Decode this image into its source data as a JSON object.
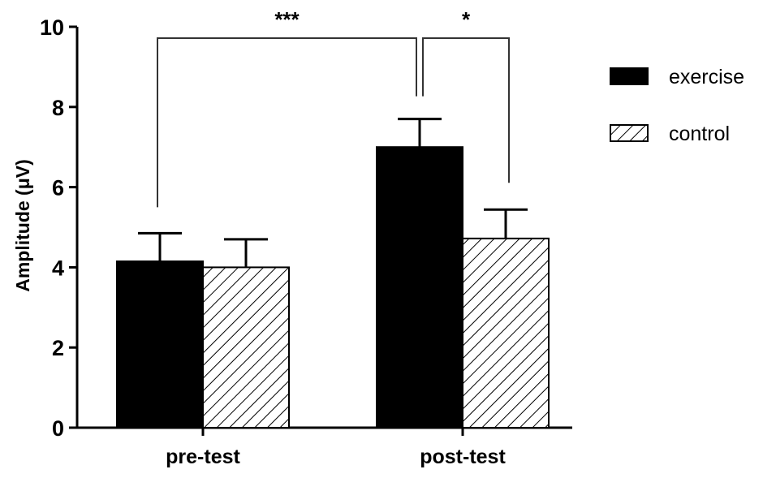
{
  "chart_data": {
    "type": "bar",
    "title": "",
    "xlabel": "",
    "ylabel": "Amplitude (μV)",
    "ylim": [
      0,
      10
    ],
    "yticks": [
      0,
      2,
      4,
      6,
      8,
      10
    ],
    "categories": [
      "pre-test",
      "post-test"
    ],
    "series": [
      {
        "name": "exercise",
        "values": [
          4.15,
          7.0
        ],
        "errors": [
          0.7,
          0.7
        ],
        "fill": "#000000",
        "pattern": "solid"
      },
      {
        "name": "control",
        "values": [
          4.0,
          4.72
        ],
        "errors": [
          0.7,
          0.72
        ],
        "fill": "#ffffff",
        "pattern": "hatch"
      }
    ],
    "legend": {
      "position": "right"
    },
    "grid": false,
    "annotations": [
      {
        "label": "***",
        "from": "pre-test/exercise",
        "to": "post-test/exercise"
      },
      {
        "label": "*",
        "from": "post-test/exercise",
        "to": "post-test/control"
      }
    ]
  }
}
